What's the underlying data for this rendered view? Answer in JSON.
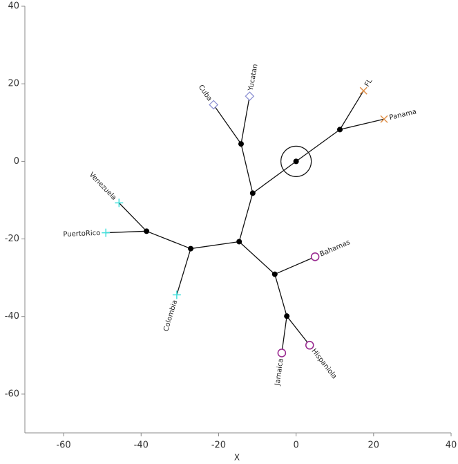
{
  "chart_data": {
    "type": "tree",
    "x_label": "X",
    "xlim": [
      -70,
      40
    ],
    "ylim": [
      -70,
      40
    ],
    "xticks": [
      -60,
      -40,
      -20,
      0,
      20,
      40
    ],
    "yticks": [
      -60,
      -40,
      -20,
      0,
      20,
      40
    ],
    "root": 0,
    "nodes": [
      {
        "x": 0,
        "y": 0
      },
      {
        "x": 11.3,
        "y": 8.2
      },
      {
        "x": -11.2,
        "y": -8.2
      },
      {
        "x": -14.2,
        "y": 4.5
      },
      {
        "x": -14.7,
        "y": -20.7
      },
      {
        "x": -27.2,
        "y": -22.5
      },
      {
        "x": -38.6,
        "y": -18.0
      },
      {
        "x": -5.5,
        "y": -29.1
      },
      {
        "x": -2.4,
        "y": -39.9
      },
      {
        "x": 17.4,
        "y": 18.2,
        "label": "FL",
        "marker": "x",
        "color": "#e0904a"
      },
      {
        "x": 22.7,
        "y": 10.9,
        "label": "Panama",
        "marker": "x",
        "color": "#e0904a"
      },
      {
        "x": -21.3,
        "y": 14.6,
        "label": "Cuba",
        "marker": "diamond",
        "color": "#8f93d4"
      },
      {
        "x": -12.0,
        "y": 16.8,
        "label": "Yucatan",
        "marker": "diamond",
        "color": "#8f93d4"
      },
      {
        "x": -45.7,
        "y": -10.7,
        "label": "Venezuela",
        "marker": "plus",
        "color": "#3fe0dc"
      },
      {
        "x": -49.1,
        "y": -18.4,
        "label": "PuertoRico",
        "marker": "plus",
        "color": "#3fe0dc"
      },
      {
        "x": -30.8,
        "y": -34.4,
        "label": "Colombia",
        "marker": "plus",
        "color": "#3fe0dc"
      },
      {
        "x": 4.9,
        "y": -24.6,
        "label": "Bahamas",
        "marker": "circle",
        "color": "#9b2d92"
      },
      {
        "x": -3.7,
        "y": -49.4,
        "label": "Jamaica",
        "marker": "circle",
        "color": "#9b2d92"
      },
      {
        "x": 3.5,
        "y": -47.4,
        "label": "Hispaniola",
        "marker": "circle",
        "color": "#9b2d92"
      }
    ],
    "edges": [
      [
        0,
        1
      ],
      [
        0,
        2
      ],
      [
        1,
        9
      ],
      [
        1,
        10
      ],
      [
        2,
        3
      ],
      [
        2,
        4
      ],
      [
        3,
        11
      ],
      [
        3,
        12
      ],
      [
        4,
        5
      ],
      [
        4,
        7
      ],
      [
        5,
        6
      ],
      [
        5,
        15
      ],
      [
        6,
        13
      ],
      [
        6,
        14
      ],
      [
        7,
        16
      ],
      [
        7,
        8
      ],
      [
        8,
        17
      ],
      [
        8,
        18
      ]
    ]
  }
}
